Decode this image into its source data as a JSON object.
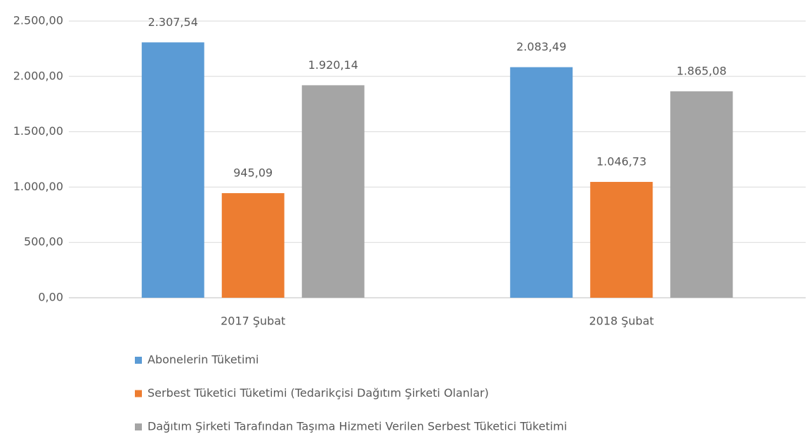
{
  "chart_data": {
    "type": "bar",
    "categories": [
      "2017 Şubat",
      "2018 Şubat"
    ],
    "series": [
      {
        "name": "Abonelerin Tüketimi",
        "color": "#5b9bd5",
        "values": [
          2307.54,
          2083.49
        ],
        "value_labels": [
          "2.307,54",
          "2.083,49"
        ]
      },
      {
        "name": "Serbest Tüketici Tüketimi (Tedarikçisi Dağıtım Şirketi Olanlar)",
        "color": "#ed7d31",
        "values": [
          945.09,
          1046.73
        ],
        "value_labels": [
          "945,09",
          "1.046,73"
        ]
      },
      {
        "name": "Dağıtım Şirketi Tarafından Taşıma Hizmeti Verilen Serbest Tüketici Tüketimi",
        "color": "#a5a5a5",
        "values": [
          1920.14,
          1865.08
        ],
        "value_labels": [
          "1.920,14",
          "1.865,08"
        ]
      }
    ],
    "ylim": [
      0,
      2500
    ],
    "yticks": [
      {
        "value": 0,
        "label": "0,00"
      },
      {
        "value": 500,
        "label": "500,00"
      },
      {
        "value": 1000,
        "label": "1.000,00"
      },
      {
        "value": 1500,
        "label": "1.500,00"
      },
      {
        "value": 2000,
        "label": "2.000,00"
      },
      {
        "value": 2500,
        "label": "2.500,00"
      }
    ],
    "grid": true,
    "legend": "bottom"
  }
}
